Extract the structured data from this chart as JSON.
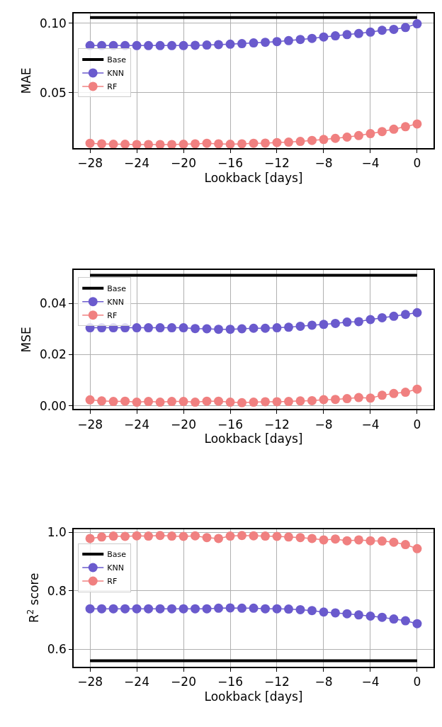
{
  "chart_data": [
    {
      "type": "line",
      "ylabel": "MAE",
      "xlabel": "Lookback [days]",
      "x": [
        -28,
        -27,
        -26,
        -25,
        -24,
        -23,
        -22,
        -21,
        -20,
        -19,
        -18,
        -17,
        -16,
        -15,
        -14,
        -13,
        -12,
        -11,
        -10,
        -9,
        -8,
        -7,
        -6,
        -5,
        -4,
        -3,
        -2,
        -1,
        0
      ],
      "series": [
        {
          "name": "Base",
          "color": "#000000",
          "marker": "none",
          "values": [
            0.104,
            0.104,
            0.104,
            0.104,
            0.104,
            0.104,
            0.104,
            0.104,
            0.104,
            0.104,
            0.104,
            0.104,
            0.104,
            0.104,
            0.104,
            0.104,
            0.104,
            0.104,
            0.104,
            0.104,
            0.104,
            0.104,
            0.104,
            0.104,
            0.104,
            0.104,
            0.104,
            0.104,
            0.104
          ]
        },
        {
          "name": "KNN",
          "color": "#6a5acd",
          "marker": "circle",
          "values": [
            0.0838,
            0.0838,
            0.0838,
            0.0838,
            0.0838,
            0.0838,
            0.0838,
            0.0838,
            0.0838,
            0.084,
            0.0842,
            0.0845,
            0.0848,
            0.0852,
            0.0857,
            0.0862,
            0.0867,
            0.0874,
            0.0882,
            0.089,
            0.09,
            0.0908,
            0.0917,
            0.0925,
            0.0935,
            0.0948,
            0.0955,
            0.0968,
            0.0995
          ]
        },
        {
          "name": "RF",
          "color": "#f08080",
          "marker": "circle",
          "values": [
            0.0135,
            0.0131,
            0.0128,
            0.0128,
            0.0126,
            0.0126,
            0.0126,
            0.0126,
            0.0128,
            0.0131,
            0.0135,
            0.0131,
            0.0128,
            0.0131,
            0.0135,
            0.0136,
            0.014,
            0.0143,
            0.0148,
            0.0155,
            0.0162,
            0.017,
            0.0179,
            0.019,
            0.0204,
            0.0219,
            0.0236,
            0.0254,
            0.0274
          ]
        }
      ],
      "xlim": [
        -29.4,
        1.4
      ],
      "xticks": [
        {
          "value": -28,
          "label": "−28"
        },
        {
          "value": -24,
          "label": "−24"
        },
        {
          "value": -20,
          "label": "−20"
        },
        {
          "value": -16,
          "label": "−16"
        },
        {
          "value": -12,
          "label": "−12"
        },
        {
          "value": -8,
          "label": "−8"
        },
        {
          "value": -4,
          "label": "−4"
        },
        0
      ],
      "ylim": [
        0.01,
        0.107
      ],
      "yticks": [
        {
          "value": 0.05,
          "label": "0.05"
        },
        {
          "value": 0.1,
          "label": "0.10"
        }
      ],
      "grid": true,
      "legend": "top left"
    },
    {
      "type": "line",
      "ylabel": "MSE",
      "xlabel": "Lookback [days]",
      "x": [
        -28,
        -27,
        -26,
        -25,
        -24,
        -23,
        -22,
        -21,
        -20,
        -19,
        -18,
        -17,
        -16,
        -15,
        -14,
        -13,
        -12,
        -11,
        -10,
        -9,
        -8,
        -7,
        -6,
        -5,
        -4,
        -3,
        -2,
        -1,
        0
      ],
      "series": [
        {
          "name": "Base",
          "color": "#000000",
          "marker": "none",
          "values": [
            0.051,
            0.051,
            0.051,
            0.051,
            0.051,
            0.051,
            0.051,
            0.051,
            0.051,
            0.051,
            0.051,
            0.051,
            0.051,
            0.051,
            0.051,
            0.051,
            0.051,
            0.051,
            0.051,
            0.051,
            0.051,
            0.051,
            0.051,
            0.051,
            0.051,
            0.051,
            0.051,
            0.051,
            0.051
          ]
        },
        {
          "name": "KNN",
          "color": "#6a5acd",
          "marker": "circle",
          "values": [
            0.0305,
            0.0305,
            0.0305,
            0.0305,
            0.0305,
            0.0305,
            0.0305,
            0.0305,
            0.0305,
            0.0302,
            0.0301,
            0.0299,
            0.0299,
            0.0301,
            0.0303,
            0.0303,
            0.0305,
            0.0307,
            0.0311,
            0.0315,
            0.0318,
            0.0322,
            0.0327,
            0.0329,
            0.0337,
            0.0344,
            0.035,
            0.0357,
            0.0364
          ]
        },
        {
          "name": "RF",
          "color": "#f08080",
          "marker": "circle",
          "values": [
            0.0023,
            0.0019,
            0.0017,
            0.0018,
            0.0014,
            0.0017,
            0.0014,
            0.0017,
            0.0017,
            0.0014,
            0.0018,
            0.0018,
            0.0014,
            0.0012,
            0.0014,
            0.0016,
            0.0016,
            0.0017,
            0.0019,
            0.002,
            0.0024,
            0.0025,
            0.0028,
            0.0032,
            0.003,
            0.0041,
            0.0048,
            0.0053,
            0.0065
          ]
        }
      ],
      "xlim": [
        -29.4,
        1.4
      ],
      "xticks": [
        {
          "value": -28,
          "label": "−28"
        },
        {
          "value": -24,
          "label": "−24"
        },
        {
          "value": -20,
          "label": "−20"
        },
        {
          "value": -16,
          "label": "−16"
        },
        {
          "value": -12,
          "label": "−12"
        },
        {
          "value": -8,
          "label": "−8"
        },
        {
          "value": -4,
          "label": "−4"
        },
        0
      ],
      "ylim": [
        -0.0013,
        0.053
      ],
      "yticks": [
        {
          "value": 0,
          "label": "0.00"
        },
        {
          "value": 0.02,
          "label": "0.02"
        },
        {
          "value": 0.04,
          "label": "0.04"
        }
      ],
      "grid": true,
      "legend": "top left"
    },
    {
      "type": "line",
      "ylabel": "R$^{2}$ score",
      "xlabel": "Lookback [days]",
      "x": [
        -28,
        -27,
        -26,
        -25,
        -24,
        -23,
        -22,
        -21,
        -20,
        -19,
        -18,
        -17,
        -16,
        -15,
        -14,
        -13,
        -12,
        -11,
        -10,
        -9,
        -8,
        -7,
        -6,
        -5,
        -4,
        -3,
        -2,
        -1,
        0
      ],
      "series": [
        {
          "name": "Base",
          "color": "#000000",
          "marker": "none",
          "values": [
            0.56,
            0.56,
            0.56,
            0.56,
            0.56,
            0.56,
            0.56,
            0.56,
            0.56,
            0.56,
            0.56,
            0.56,
            0.56,
            0.56,
            0.56,
            0.56,
            0.56,
            0.56,
            0.56,
            0.56,
            0.56,
            0.56,
            0.56,
            0.56,
            0.56,
            0.56,
            0.56,
            0.56,
            0.56
          ]
        },
        {
          "name": "KNN",
          "color": "#6a5acd",
          "marker": "circle",
          "values": [
            0.738,
            0.738,
            0.738,
            0.738,
            0.738,
            0.738,
            0.738,
            0.738,
            0.738,
            0.738,
            0.738,
            0.74,
            0.741,
            0.74,
            0.74,
            0.738,
            0.738,
            0.737,
            0.735,
            0.732,
            0.727,
            0.724,
            0.721,
            0.717,
            0.713,
            0.709,
            0.703,
            0.697,
            0.687
          ]
        },
        {
          "name": "RF",
          "color": "#f08080",
          "marker": "circle",
          "values": [
            0.979,
            0.984,
            0.987,
            0.986,
            0.988,
            0.987,
            0.989,
            0.987,
            0.986,
            0.988,
            0.982,
            0.979,
            0.987,
            0.989,
            0.988,
            0.987,
            0.986,
            0.984,
            0.982,
            0.979,
            0.974,
            0.977,
            0.971,
            0.974,
            0.971,
            0.97,
            0.966,
            0.958,
            0.944
          ]
        }
      ],
      "xlim": [
        -29.4,
        1.4
      ],
      "xticks": [
        {
          "value": -28,
          "label": "−28"
        },
        {
          "value": -24,
          "label": "−24"
        },
        {
          "value": -20,
          "label": "−20"
        },
        {
          "value": -16,
          "label": "−16"
        },
        {
          "value": -12,
          "label": "−12"
        },
        {
          "value": -8,
          "label": "−8"
        },
        {
          "value": -4,
          "label": "−4"
        },
        0
      ],
      "ylim": [
        0.54,
        1.011
      ],
      "yticks": [
        {
          "value": 0.6,
          "label": "0.6"
        },
        {
          "value": 0.8,
          "label": "0.8"
        },
        {
          "value": 1.0,
          "label": "1.0"
        }
      ],
      "grid": true,
      "legend": "top left"
    }
  ]
}
